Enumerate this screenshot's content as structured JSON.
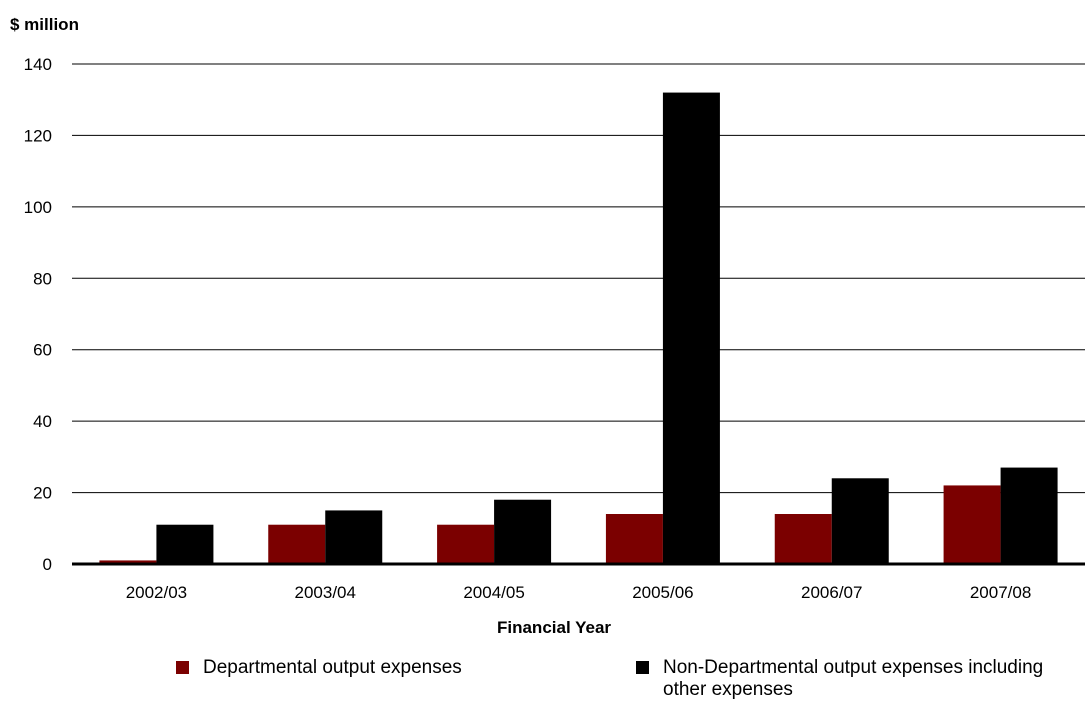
{
  "chart_data": {
    "type": "bar",
    "ylabel": "$ million",
    "xlabel": "Financial Year",
    "categories": [
      "2002/03",
      "2003/04",
      "2004/05",
      "2005/06",
      "2006/07",
      "2007/08"
    ],
    "series": [
      {
        "name": "Departmental output expenses",
        "color": "#7b0000",
        "values": [
          1,
          11,
          11,
          14,
          14,
          22
        ]
      },
      {
        "name": "Non-Departmental output expenses including other expenses",
        "color": "#000000",
        "values": [
          11,
          15,
          18,
          132,
          24,
          27
        ]
      }
    ],
    "ylim": [
      0,
      140
    ],
    "yticks": [
      0,
      20,
      40,
      60,
      80,
      100,
      120,
      140
    ],
    "grid": true,
    "legend_position": "bottom"
  }
}
